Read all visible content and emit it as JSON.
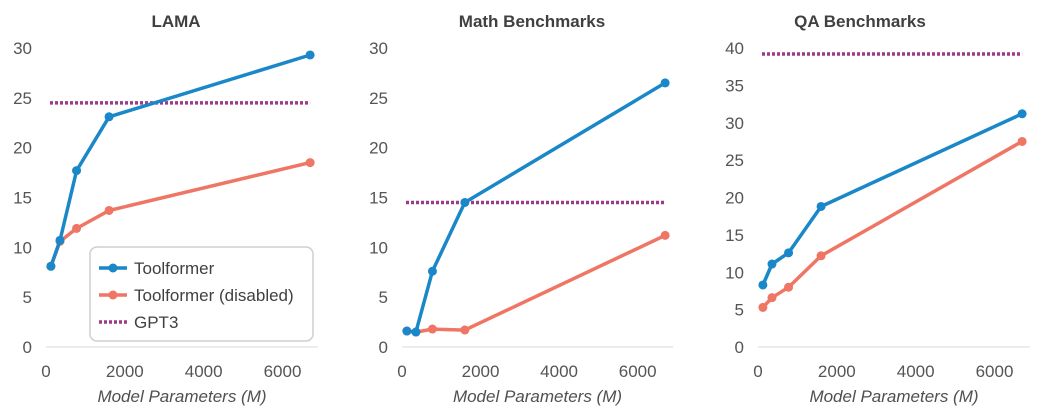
{
  "legend": {
    "items": [
      {
        "name": "Toolformer",
        "color": "#1a87c9",
        "style": "solid"
      },
      {
        "name": "Toolformer (disabled)",
        "color": "#ef7564",
        "style": "solid"
      },
      {
        "name": "GPT3",
        "color": "#9e3a8c",
        "style": "dotted"
      }
    ]
  },
  "chart_data": [
    {
      "type": "line",
      "title": "LAMA",
      "xlabel": "Model Parameters (M)",
      "ylabel": "",
      "xlim": [
        0,
        6900
      ],
      "ylim": [
        0,
        30
      ],
      "xticks": [
        0,
        2000,
        4000,
        6000
      ],
      "yticks": [
        0,
        5,
        10,
        15,
        20,
        25,
        30
      ],
      "legend_position": "bottom-left",
      "grid": false,
      "series": [
        {
          "name": "Toolformer",
          "x": [
            124,
            355,
            775,
            1600,
            6700
          ],
          "y": [
            8.1,
            10.7,
            17.7,
            23.1,
            29.3
          ]
        },
        {
          "name": "Toolformer (disabled)",
          "x": [
            124,
            355,
            775,
            1600,
            6700
          ],
          "y": [
            8.1,
            10.6,
            11.9,
            13.7,
            18.5
          ]
        }
      ],
      "reference": {
        "name": "GPT3",
        "value": 24.5,
        "x": [
          0,
          6700
        ]
      }
    },
    {
      "type": "line",
      "title": "Math Benchmarks",
      "xlabel": "Model Parameters (M)",
      "ylabel": "",
      "xlim": [
        0,
        6900
      ],
      "ylim": [
        0,
        30
      ],
      "xticks": [
        0,
        2000,
        4000,
        6000
      ],
      "yticks": [
        0,
        5,
        10,
        15,
        20,
        25,
        30
      ],
      "grid": false,
      "series": [
        {
          "name": "Toolformer",
          "x": [
            124,
            355,
            775,
            1600,
            6700
          ],
          "y": [
            1.6,
            1.5,
            7.6,
            14.5,
            26.5
          ]
        },
        {
          "name": "Toolformer (disabled)",
          "x": [
            124,
            355,
            775,
            1600,
            6700
          ],
          "y": [
            1.6,
            1.5,
            1.8,
            1.7,
            11.2
          ]
        }
      ],
      "reference": {
        "name": "GPT3",
        "value": 14.5,
        "x": [
          0,
          6700
        ]
      }
    },
    {
      "type": "line",
      "title": "QA Benchmarks",
      "xlabel": "Model Parameters (M)",
      "ylabel": "",
      "xlim": [
        0,
        6900
      ],
      "ylim": [
        0,
        40
      ],
      "xticks": [
        0,
        2000,
        4000,
        6000
      ],
      "yticks": [
        0,
        5,
        10,
        15,
        20,
        25,
        30,
        35,
        40
      ],
      "grid": false,
      "series": [
        {
          "name": "Toolformer",
          "x": [
            124,
            355,
            775,
            1600,
            6700
          ],
          "y": [
            8.3,
            11.1,
            12.6,
            18.8,
            31.2
          ]
        },
        {
          "name": "Toolformer (disabled)",
          "x": [
            124,
            355,
            775,
            1600,
            6700
          ],
          "y": [
            5.3,
            6.6,
            8.0,
            12.2,
            27.5
          ]
        }
      ],
      "reference": {
        "name": "GPT3",
        "value": 39.2,
        "x": [
          0,
          6700
        ]
      }
    }
  ]
}
